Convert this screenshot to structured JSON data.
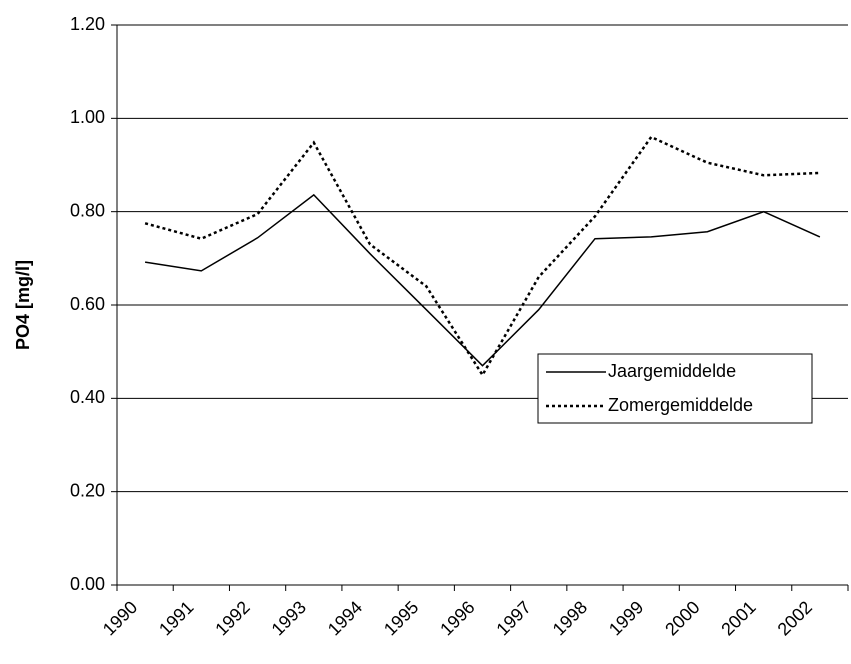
{
  "chart_data": {
    "type": "line",
    "y_label": "PO4 [mg/l]",
    "categories": [
      "1990",
      "1991",
      "1992",
      "1993",
      "1994",
      "1995",
      "1996",
      "1997",
      "1998",
      "1999",
      "2000",
      "2001",
      "2002"
    ],
    "series": [
      {
        "name": "Jaargemiddelde",
        "color": "#000000",
        "style": "solid",
        "values": [
          0.692,
          0.673,
          0.744,
          0.836,
          0.71,
          0.59,
          0.47,
          0.59,
          0.742,
          0.746,
          0.757,
          0.8,
          0.746
        ]
      },
      {
        "name": "Zomergemiddelde",
        "color": "#000000",
        "style": "dotted",
        "values": [
          0.775,
          0.742,
          0.795,
          0.948,
          0.73,
          0.64,
          0.45,
          0.66,
          0.79,
          0.96,
          0.905,
          0.878,
          0.883
        ]
      }
    ],
    "ylim": [
      0,
      1.2
    ],
    "yticks": [
      {
        "value": 0,
        "label": "0.00"
      },
      {
        "value": 0.2,
        "label": "0.20"
      },
      {
        "value": 0.4,
        "label": "0.40"
      },
      {
        "value": 0.6,
        "label": "0.60"
      },
      {
        "value": 0.8,
        "label": "0.80"
      },
      {
        "value": 1.0,
        "label": "1.00"
      },
      {
        "value": 1.2,
        "label": "1.20"
      }
    ],
    "grid": true
  }
}
